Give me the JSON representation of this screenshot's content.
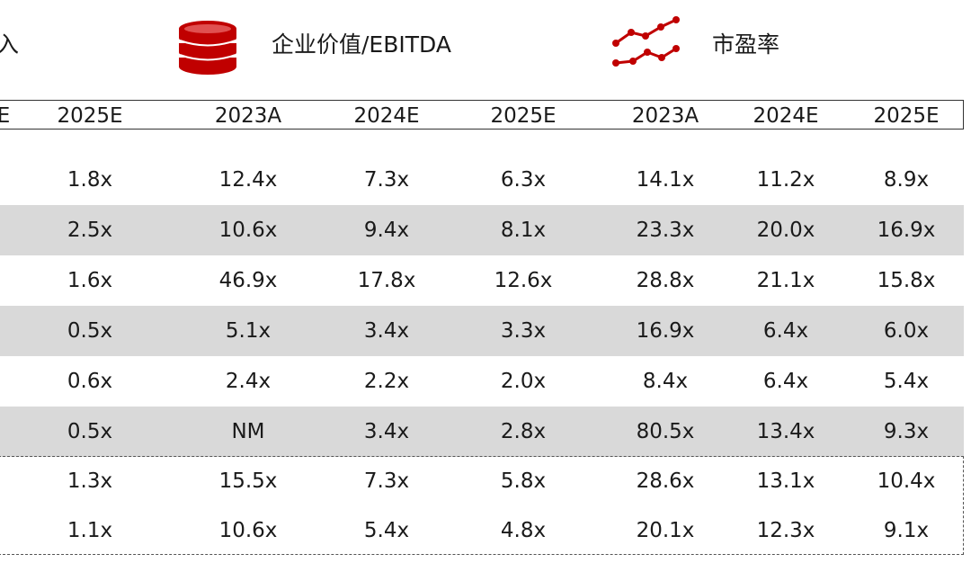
{
  "header": {
    "left_fragment": "入",
    "group_ev_ebitda": {
      "label": "企业价值/EBITDA",
      "icon": "coin-stack-icon",
      "icon_color": "#c00000"
    },
    "group_pe": {
      "label": "市盈率",
      "icon": "line-trend-icon",
      "icon_color": "#c00000"
    }
  },
  "columns": [
    "E",
    "2025E",
    "2023A",
    "2024E",
    "2025E",
    "2023A",
    "2024E",
    "2025E"
  ],
  "rows": [
    [
      "",
      "1.8x",
      "12.4x",
      "7.3x",
      "6.3x",
      "14.1x",
      "11.2x",
      "8.9x"
    ],
    [
      "",
      "2.5x",
      "10.6x",
      "9.4x",
      "8.1x",
      "23.3x",
      "20.0x",
      "16.9x"
    ],
    [
      "",
      "1.6x",
      "46.9x",
      "17.8x",
      "12.6x",
      "28.8x",
      "21.1x",
      "15.8x"
    ],
    [
      "",
      "0.5x",
      "5.1x",
      "3.4x",
      "3.3x",
      "16.9x",
      "6.4x",
      "6.0x"
    ],
    [
      "",
      "0.6x",
      "2.4x",
      "2.2x",
      "2.0x",
      "8.4x",
      "6.4x",
      "5.4x"
    ],
    [
      "",
      "0.5x",
      "NM",
      "3.4x",
      "2.8x",
      "80.5x",
      "13.4x",
      "9.3x"
    ],
    [
      "",
      "1.3x",
      "15.5x",
      "7.3x",
      "5.8x",
      "28.6x",
      "13.1x",
      "10.4x"
    ],
    [
      "",
      "1.1x",
      "10.6x",
      "5.4x",
      "4.8x",
      "20.1x",
      "12.3x",
      "9.1x"
    ]
  ],
  "colors": {
    "accent": "#c00000",
    "row_shade": "#d9d9d9",
    "border": "#333333"
  }
}
